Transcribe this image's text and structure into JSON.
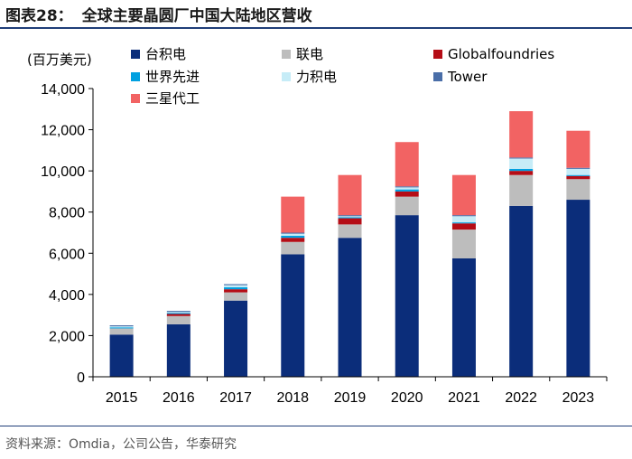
{
  "header": {
    "figure_label": "图表28：",
    "title": "全球主要晶圆厂中国大陆地区营收"
  },
  "source": "资料来源：Omdia，公司公告，华泰研究",
  "chart_data": {
    "type": "bar",
    "stacked": true,
    "title": "全球主要晶圆厂中国大陆地区营收",
    "unit_label": "(百万美元)",
    "xlabel": "",
    "ylabel": "(百万美元)",
    "ylim": [
      0,
      14000
    ],
    "yticks": [
      0,
      2000,
      4000,
      6000,
      8000,
      10000,
      12000,
      14000
    ],
    "ytick_labels": [
      "0",
      "2,000",
      "4,000",
      "6,000",
      "8,000",
      "10,000",
      "12,000",
      "14,000"
    ],
    "categories": [
      "2015",
      "2016",
      "2017",
      "2018",
      "2019",
      "2020",
      "2021",
      "2022",
      "2023"
    ],
    "legend_position": "top",
    "series": [
      {
        "name": "台积电",
        "color": "#0b2d7a",
        "values": [
          2050,
          2550,
          3700,
          5950,
          6750,
          7850,
          5750,
          8300,
          8600
        ]
      },
      {
        "name": "联电",
        "color": "#bdbdbd",
        "values": [
          300,
          400,
          400,
          600,
          650,
          900,
          1400,
          1500,
          1000
        ]
      },
      {
        "name": "Globalfoundries",
        "color": "#b50d16",
        "values": [
          0,
          100,
          150,
          200,
          300,
          250,
          300,
          200,
          150
        ]
      },
      {
        "name": "世界先进",
        "color": "#00a0e0",
        "values": [
          50,
          50,
          100,
          100,
          50,
          100,
          50,
          100,
          50
        ]
      },
      {
        "name": "力积电",
        "color": "#c6ecf7",
        "values": [
          50,
          50,
          100,
          100,
          50,
          100,
          300,
          500,
          300
        ]
      },
      {
        "name": "Tower",
        "color": "#4a6ea8",
        "values": [
          50,
          50,
          50,
          50,
          50,
          50,
          50,
          50,
          50
        ]
      },
      {
        "name": "三星代工",
        "color": "#f26363",
        "values": [
          0,
          0,
          0,
          1750,
          1950,
          2150,
          1950,
          2250,
          1800
        ]
      }
    ]
  }
}
